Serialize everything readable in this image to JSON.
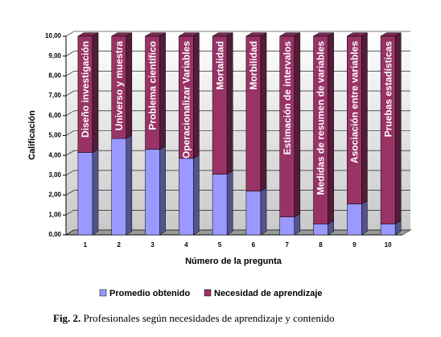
{
  "chart_data": {
    "type": "bar",
    "stacked": true,
    "three_d": true,
    "y_label": "Calificación",
    "x_label": "Número de la pregunta",
    "categories": [
      "1",
      "2",
      "3",
      "4",
      "5",
      "6",
      "7",
      "8",
      "9",
      "10"
    ],
    "bar_labels": [
      "Diseño investigación",
      "Universo y muestra",
      "Problema científico",
      "Operacionalizar Variables",
      "Mortalidad",
      "Morbilidad",
      "Estimación de intervalos",
      "Medidas de resumen de variables",
      "Asociación entre variables",
      "Pruebas estadísticas"
    ],
    "series": [
      {
        "name": "Promedio obtenido",
        "color": "#9999ff",
        "values": [
          4.15,
          4.85,
          4.3,
          3.85,
          3.05,
          2.2,
          0.9,
          0.55,
          1.55,
          0.55
        ]
      },
      {
        "name": "Necesidad de aprendizaje",
        "color": "#993366",
        "values": [
          5.85,
          5.15,
          5.7,
          6.15,
          6.95,
          7.8,
          9.1,
          9.45,
          8.45,
          9.45
        ]
      }
    ],
    "ylim": [
      0,
      10
    ],
    "yticks": [
      {
        "value": 0,
        "label": "0,00"
      },
      {
        "value": 1,
        "label": "1,00"
      },
      {
        "value": 2,
        "label": "2,00"
      },
      {
        "value": 3,
        "label": "3,00"
      },
      {
        "value": 4,
        "label": "4,00"
      },
      {
        "value": 5,
        "label": "5,00"
      },
      {
        "value": 6,
        "label": "6,00"
      },
      {
        "value": 7,
        "label": "7,00"
      },
      {
        "value": 8,
        "label": "8,00"
      },
      {
        "value": 9,
        "label": "9,00"
      },
      {
        "value": 10,
        "label": "10,00"
      }
    ],
    "grid": true,
    "legend_position": "bottom"
  },
  "caption": {
    "label": "Fig. 2.",
    "text": "Profesionales según necesidades de aprendizaje y contenido"
  }
}
